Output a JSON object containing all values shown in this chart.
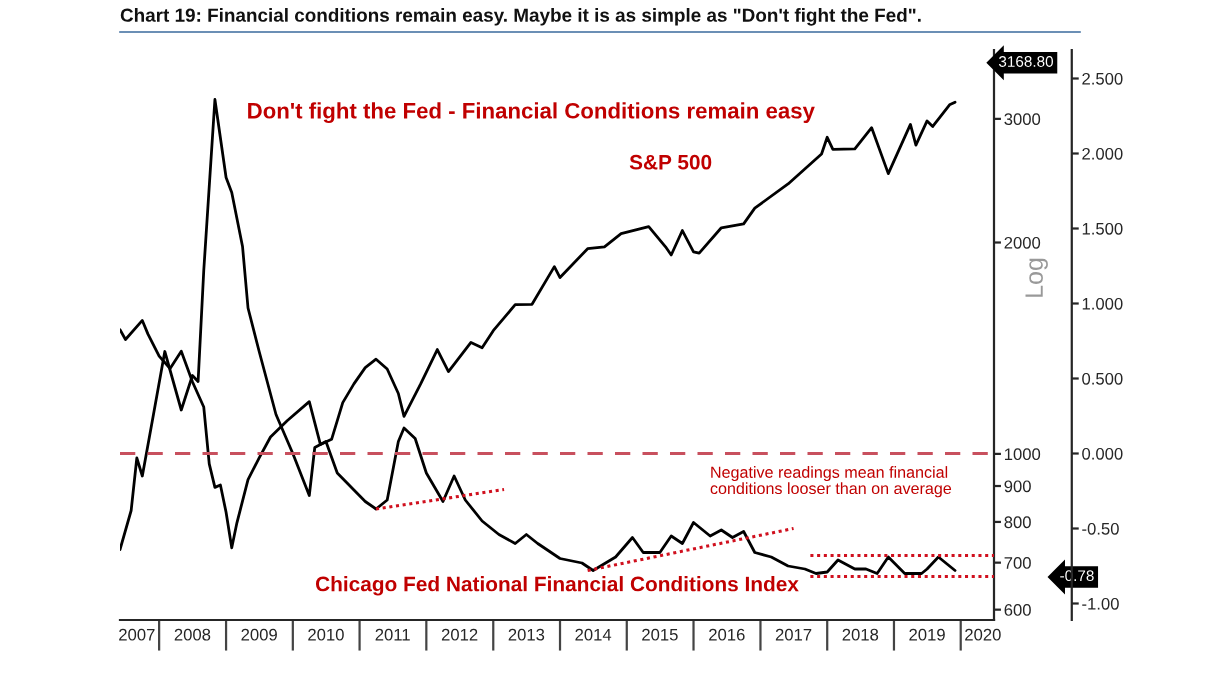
{
  "chart_data": {
    "type": "line",
    "title": "Chart 19: Financial conditions remain easy. Maybe it is as simple as \"Don't fight the Fed\".",
    "subtitle": "Don't fight the Fed - Financial Conditions remain easy",
    "log": "y",
    "xlim": [
      "2007-06",
      "2020-07"
    ],
    "xticks": [
      {
        "value": "2007-09",
        "label": "2007"
      },
      {
        "value": "2008-07",
        "label": "2008"
      },
      {
        "value": "2009-07",
        "label": "2009"
      },
      {
        "value": "2010-07",
        "label": "2010"
      },
      {
        "value": "2011-07",
        "label": "2011"
      },
      {
        "value": "2012-07",
        "label": "2012"
      },
      {
        "value": "2013-07",
        "label": "2013"
      },
      {
        "value": "2014-07",
        "label": "2014"
      },
      {
        "value": "2015-07",
        "label": "2015"
      },
      {
        "value": "2016-07",
        "label": "2016"
      },
      {
        "value": "2017-07",
        "label": "2017"
      },
      {
        "value": "2018-07",
        "label": "2018"
      },
      {
        "value": "2019-07",
        "label": "2019"
      },
      {
        "value": "2020-05",
        "label": "2020"
      },
      {
        "value": "2008-01",
        "label": null
      },
      {
        "value": "2009-01",
        "label": null
      },
      {
        "value": "2010-01",
        "label": null
      },
      {
        "value": "2011-01",
        "label": null
      },
      {
        "value": "2012-01",
        "label": null
      },
      {
        "value": "2013-01",
        "label": null
      },
      {
        "value": "2014-01",
        "label": null
      },
      {
        "value": "2015-01",
        "label": null
      },
      {
        "value": "2016-01",
        "label": null
      },
      {
        "value": "2017-01",
        "label": null
      },
      {
        "value": "2018-01",
        "label": null
      },
      {
        "value": "2019-01",
        "label": null
      },
      {
        "value": "2020-01",
        "label": null
      }
    ],
    "ylim": [
      580,
      3760
    ],
    "yticks": [
      600,
      700,
      800,
      900,
      1000,
      2000,
      3000
    ],
    "y2lim": [
      -1.11,
      2.69
    ],
    "y2ticks": [
      {
        "value": 2.5,
        "label": "2.500"
      },
      {
        "value": 2.0,
        "label": "2.000"
      },
      {
        "value": 1.5,
        "label": "1.500"
      },
      {
        "value": 1.0,
        "label": "1.000"
      },
      {
        "value": 0.5,
        "label": "0.500"
      },
      {
        "value": 0.0,
        "label": "0.000"
      },
      {
        "value": -0.5,
        "label": "-0.50"
      },
      {
        "value": -1.0,
        "label": "-1.00"
      }
    ],
    "grid": false,
    "legend": false,
    "series": [
      {
        "name": "S&P 500",
        "color": "#000000",
        "x": [
          "2007-06",
          "2007-07",
          "2007-10",
          "2007-11",
          "2008-01",
          "2008-03",
          "2008-05",
          "2008-07",
          "2008-09",
          "2008-10",
          "2008-11",
          "2008-12",
          "2009-01",
          "2009-02",
          "2009-03",
          "2009-05",
          "2009-07",
          "2009-09",
          "2009-12",
          "2010-04",
          "2010-06",
          "2010-08",
          "2010-10",
          "2010-12",
          "2011-02",
          "2011-04",
          "2011-06",
          "2011-08",
          "2011-09",
          "2011-12",
          "2012-03",
          "2012-05",
          "2012-09",
          "2012-11",
          "2013-01",
          "2013-05",
          "2013-08",
          "2013-12",
          "2014-01",
          "2014-06",
          "2014-09",
          "2014-12",
          "2015-05",
          "2015-08",
          "2015-09",
          "2015-11",
          "2016-01",
          "2016-02",
          "2016-06",
          "2016-10",
          "2016-12",
          "2017-06",
          "2017-12",
          "2018-01",
          "2018-02",
          "2018-06",
          "2018-09",
          "2018-12",
          "2019-04",
          "2019-05",
          "2019-07",
          "2019-08",
          "2019-11",
          "2019-12"
        ],
        "values": [
          1503,
          1455,
          1549,
          1481,
          1378,
          1323,
          1400,
          1267,
          1166,
          968,
          896,
          903,
          826,
          735,
          797,
          919,
          987,
          1057,
          1115,
          1187,
          1031,
          1049,
          1183,
          1258,
          1327,
          1364,
          1321,
          1219,
          1131,
          1258,
          1408,
          1310,
          1441,
          1416,
          1498,
          1631,
          1633,
          1848,
          1783,
          1960,
          1972,
          2059,
          2107,
          1972,
          1920,
          2080,
          1940,
          1932,
          2099,
          2126,
          2239,
          2423,
          2674,
          2824,
          2714,
          2718,
          2914,
          2507,
          2946,
          2752,
          2980,
          2926,
          3141,
          3168.8
        ]
      },
      {
        "name": "Chicago Fed National Financial Conditions Index",
        "color": "#000000",
        "axis": "y2",
        "x": [
          "2007-06",
          "2007-08",
          "2007-09",
          "2007-10",
          "2007-12",
          "2008-02",
          "2008-05",
          "2008-07",
          "2008-08",
          "2008-09",
          "2008-11",
          "2009-01",
          "2009-02",
          "2009-04",
          "2009-05",
          "2009-07",
          "2009-10",
          "2010-01",
          "2010-04",
          "2010-05",
          "2010-07",
          "2010-09",
          "2011-02",
          "2011-04",
          "2011-06",
          "2011-08",
          "2011-09",
          "2011-11",
          "2012-01",
          "2012-04",
          "2012-06",
          "2012-08",
          "2012-11",
          "2013-02",
          "2013-05",
          "2013-07",
          "2013-09",
          "2014-01",
          "2014-05",
          "2014-07",
          "2014-11",
          "2015-02",
          "2015-04",
          "2015-07",
          "2015-09",
          "2015-11",
          "2016-01",
          "2016-04",
          "2016-06",
          "2016-08",
          "2016-10",
          "2016-12",
          "2017-03",
          "2017-06",
          "2017-09",
          "2017-11",
          "2018-01",
          "2018-03",
          "2018-06",
          "2018-08",
          "2018-10",
          "2018-12",
          "2019-03",
          "2019-06",
          "2019-07",
          "2019-09",
          "2019-12"
        ],
        "values": [
          -0.64,
          -0.38,
          -0.03,
          -0.15,
          0.26,
          0.68,
          0.29,
          0.52,
          0.48,
          1.22,
          2.36,
          1.84,
          1.74,
          1.38,
          0.97,
          0.68,
          0.26,
          0.0,
          -0.28,
          0.04,
          0.08,
          -0.13,
          -0.32,
          -0.37,
          -0.31,
          0.08,
          0.17,
          0.1,
          -0.13,
          -0.32,
          -0.15,
          -0.31,
          -0.45,
          -0.54,
          -0.6,
          -0.54,
          -0.6,
          -0.7,
          -0.73,
          -0.78,
          -0.69,
          -0.56,
          -0.66,
          -0.66,
          -0.55,
          -0.6,
          -0.46,
          -0.55,
          -0.51,
          -0.56,
          -0.52,
          -0.66,
          -0.69,
          -0.75,
          -0.77,
          -0.8,
          -0.79,
          -0.71,
          -0.77,
          -0.77,
          -0.8,
          -0.69,
          -0.8,
          -0.8,
          -0.77,
          -0.69,
          -0.78
        ]
      },
      {
        "color": "#d0101e",
        "axis": "y2",
        "line_style": "dotted",
        "x": [
          "2011-04",
          "2013-03"
        ],
        "values": [
          -0.37,
          -0.24
        ]
      },
      {
        "color": "#d0101e",
        "axis": "y2",
        "line_style": "dotted",
        "x": [
          "2014-06",
          "2017-07"
        ],
        "values": [
          -0.78,
          -0.5
        ]
      },
      {
        "color": "#d0101e",
        "axis": "y2",
        "line_style": "dotted",
        "x": [
          "2017-10",
          "2020-07"
        ],
        "values": [
          -0.68,
          -0.68
        ]
      },
      {
        "color": "#d0101e",
        "axis": "y2",
        "line_style": "dotted",
        "x": [
          "2017-10",
          "2020-07"
        ],
        "values": [
          -0.82,
          -0.82
        ]
      }
    ],
    "ref_lines": [
      {
        "axis": "y2",
        "value": 0.0,
        "label": null,
        "color": "#c8505e",
        "line_style": "dashed"
      }
    ],
    "annotations": [
      "Negative readings mean financial\nconditions looser than on average",
      "3168.80",
      "-0.78",
      "Log"
    ]
  }
}
